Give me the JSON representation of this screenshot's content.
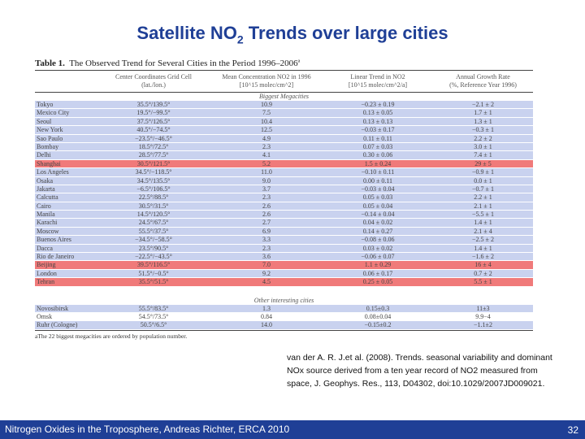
{
  "slide": {
    "title_main": "Satellite NO",
    "title_sub": "2",
    "title_rest": " Trends over large cities",
    "reference": "van der A. R. J.et al. (2008). Trends. seasonal variability and dominant NOx source derived from a ten year record of NO2 measured from space, J. Geophys. Res., 113, D04302, doi:10.1029/2007JD009021.",
    "footer": "Nitrogen Oxides in the Troposphere, Andreas Richter, ERCA 2010",
    "page_number": "32",
    "colors": {
      "title": "#1f3f96",
      "footer_bg": "#1f3f96",
      "row_blue": "#c9d2ef",
      "row_red": "#f07a7a"
    }
  },
  "table": {
    "caption_label": "Table 1.",
    "caption_text": "The Observed Trend for Several Cities in the Period 1996–2006",
    "caption_sup": "a",
    "headers": [
      [
        "",
        ""
      ],
      [
        "Center Coordinates Grid Cell",
        "(lat./lon.)"
      ],
      [
        "Mean Concentration NO2 in 1996",
        "[10^15 molec/cm^2]"
      ],
      [
        "Linear Trend in NO2",
        "[10^15 molec/cm^2/a]"
      ],
      [
        "Annual Growth Rate",
        "(%, Reference Year 1996)"
      ]
    ],
    "section1": "Biggest Megacities",
    "section2": "Other interesting cities",
    "rows": [
      {
        "city": "Tokyo",
        "coord": "35.5°/139.5°",
        "mean": "10.9",
        "trend": "−0.23 ± 0.19",
        "growth": "−2.1 ± 2",
        "hl": "blue"
      },
      {
        "city": "Mexico City",
        "coord": "19.5°/−99.5°",
        "mean": "7.5",
        "trend": "0.13 ± 0.05",
        "growth": "1.7 ± 1",
        "hl": "blue"
      },
      {
        "city": "Seoul",
        "coord": "37.5°/126.5°",
        "mean": "10.4",
        "trend": "0.13 ± 0.13",
        "growth": "1.3 ± 1",
        "hl": "blue"
      },
      {
        "city": "New York",
        "coord": "40.5°/−74.5°",
        "mean": "12.5",
        "trend": "−0.03 ± 0.17",
        "growth": "−0.3 ± 1",
        "hl": "blue"
      },
      {
        "city": "Sao Paulo",
        "coord": "−23.5°/−46.5°",
        "mean": "4.9",
        "trend": "0.11 ± 0.11",
        "growth": "2.2 ± 2",
        "hl": "blue"
      },
      {
        "city": "Bombay",
        "coord": "18.5°/72.5°",
        "mean": "2.3",
        "trend": "0.07 ± 0.03",
        "growth": "3.0 ± 1",
        "hl": "blue"
      },
      {
        "city": "Delhi",
        "coord": "28.5°/77.5°",
        "mean": "4.1",
        "trend": "0.30 ± 0.06",
        "growth": "7.4 ± 1",
        "hl": "blue"
      },
      {
        "city": "Shanghai",
        "coord": "30.5°/121.5°",
        "mean": "5.2",
        "trend": "1.5 ± 0.24",
        "growth": "29 ± 5",
        "hl": "red"
      },
      {
        "city": "Los Angeles",
        "coord": "34.5°/−118.5°",
        "mean": "11.0",
        "trend": "−0.10 ± 0.11",
        "growth": "−0.9 ± 1",
        "hl": "blue"
      },
      {
        "city": "Osaka",
        "coord": "34.5°/135.5°",
        "mean": "9.0",
        "trend": "0.00 ± 0.11",
        "growth": "0.0 ± 1",
        "hl": "blue"
      },
      {
        "city": "Jakarta",
        "coord": "−6.5°/106.5°",
        "mean": "3.7",
        "trend": "−0.03 ± 0.04",
        "growth": "−0.7 ± 1",
        "hl": "blue"
      },
      {
        "city": "Calcutta",
        "coord": "22.5°/88.5°",
        "mean": "2.3",
        "trend": "0.05 ± 0.03",
        "growth": "2.2 ± 1",
        "hl": "blue"
      },
      {
        "city": "Cairo",
        "coord": "30.5°/31.5°",
        "mean": "2.6",
        "trend": "0.05 ± 0.04",
        "growth": "2.1 ± 1",
        "hl": "blue"
      },
      {
        "city": "Manila",
        "coord": "14.5°/120.5°",
        "mean": "2.6",
        "trend": "−0.14 ± 0.04",
        "growth": "−5.5 ± 1",
        "hl": "blue"
      },
      {
        "city": "Karachi",
        "coord": "24.5°/67.5°",
        "mean": "2.7",
        "trend": "0.04 ± 0.02",
        "growth": "1.4 ± 1",
        "hl": "blue"
      },
      {
        "city": "Moscow",
        "coord": "55.5°/37.5°",
        "mean": "6.9",
        "trend": "0.14 ± 0.27",
        "growth": "2.1 ± 4",
        "hl": "blue"
      },
      {
        "city": "Buenos Aires",
        "coord": "−34.5°/−58.5°",
        "mean": "3.3",
        "trend": "−0.08 ± 0.06",
        "growth": "−2.5 ± 2",
        "hl": "blue"
      },
      {
        "city": "Dacca",
        "coord": "23.5°/90.5°",
        "mean": "2.3",
        "trend": "0.03 ± 0.02",
        "growth": "1.4 ± 1",
        "hl": "blue"
      },
      {
        "city": "Rio de Janeiro",
        "coord": "−22.5°/−43.5°",
        "mean": "3.6",
        "trend": "−0.06 ± 0.07",
        "growth": "−1.6 ± 2",
        "hl": "blue"
      },
      {
        "city": "Beijing",
        "coord": "39.5°/116.5°",
        "mean": "7.0",
        "trend": "1.1 ± 0.29",
        "growth": "16 ± 4",
        "hl": "red"
      },
      {
        "city": "London",
        "coord": "51.5°/−0.5°",
        "mean": "9.2",
        "trend": "0.06 ± 0.17",
        "growth": "0.7 ± 2",
        "hl": "blue"
      },
      {
        "city": "Tehran",
        "coord": "35.5°/51.5°",
        "mean": "4.5",
        "trend": "0.25 ± 0.05",
        "growth": "5.5 ± 1",
        "hl": "red"
      }
    ],
    "other_rows": [
      {
        "city": "Novosibirsk",
        "coord": "55.5°/83.5°",
        "mean": "1.3",
        "trend": "0.15±0.3",
        "growth": "11±3",
        "hl": "blue"
      },
      {
        "city": "Omsk",
        "coord": "54.5°/73.5°",
        "mean": "0.84",
        "trend": "0.08±0.04",
        "growth": "9.9−4",
        "hl": "none"
      },
      {
        "city": "Ruhr (Cologne)",
        "coord": "50.5°/6.5°",
        "mean": "14.0",
        "trend": "−0.15±0.2",
        "growth": "−1.1±2",
        "hl": "blue"
      }
    ],
    "footnote": "aThe 22 biggest megacities are ordered by population number."
  }
}
